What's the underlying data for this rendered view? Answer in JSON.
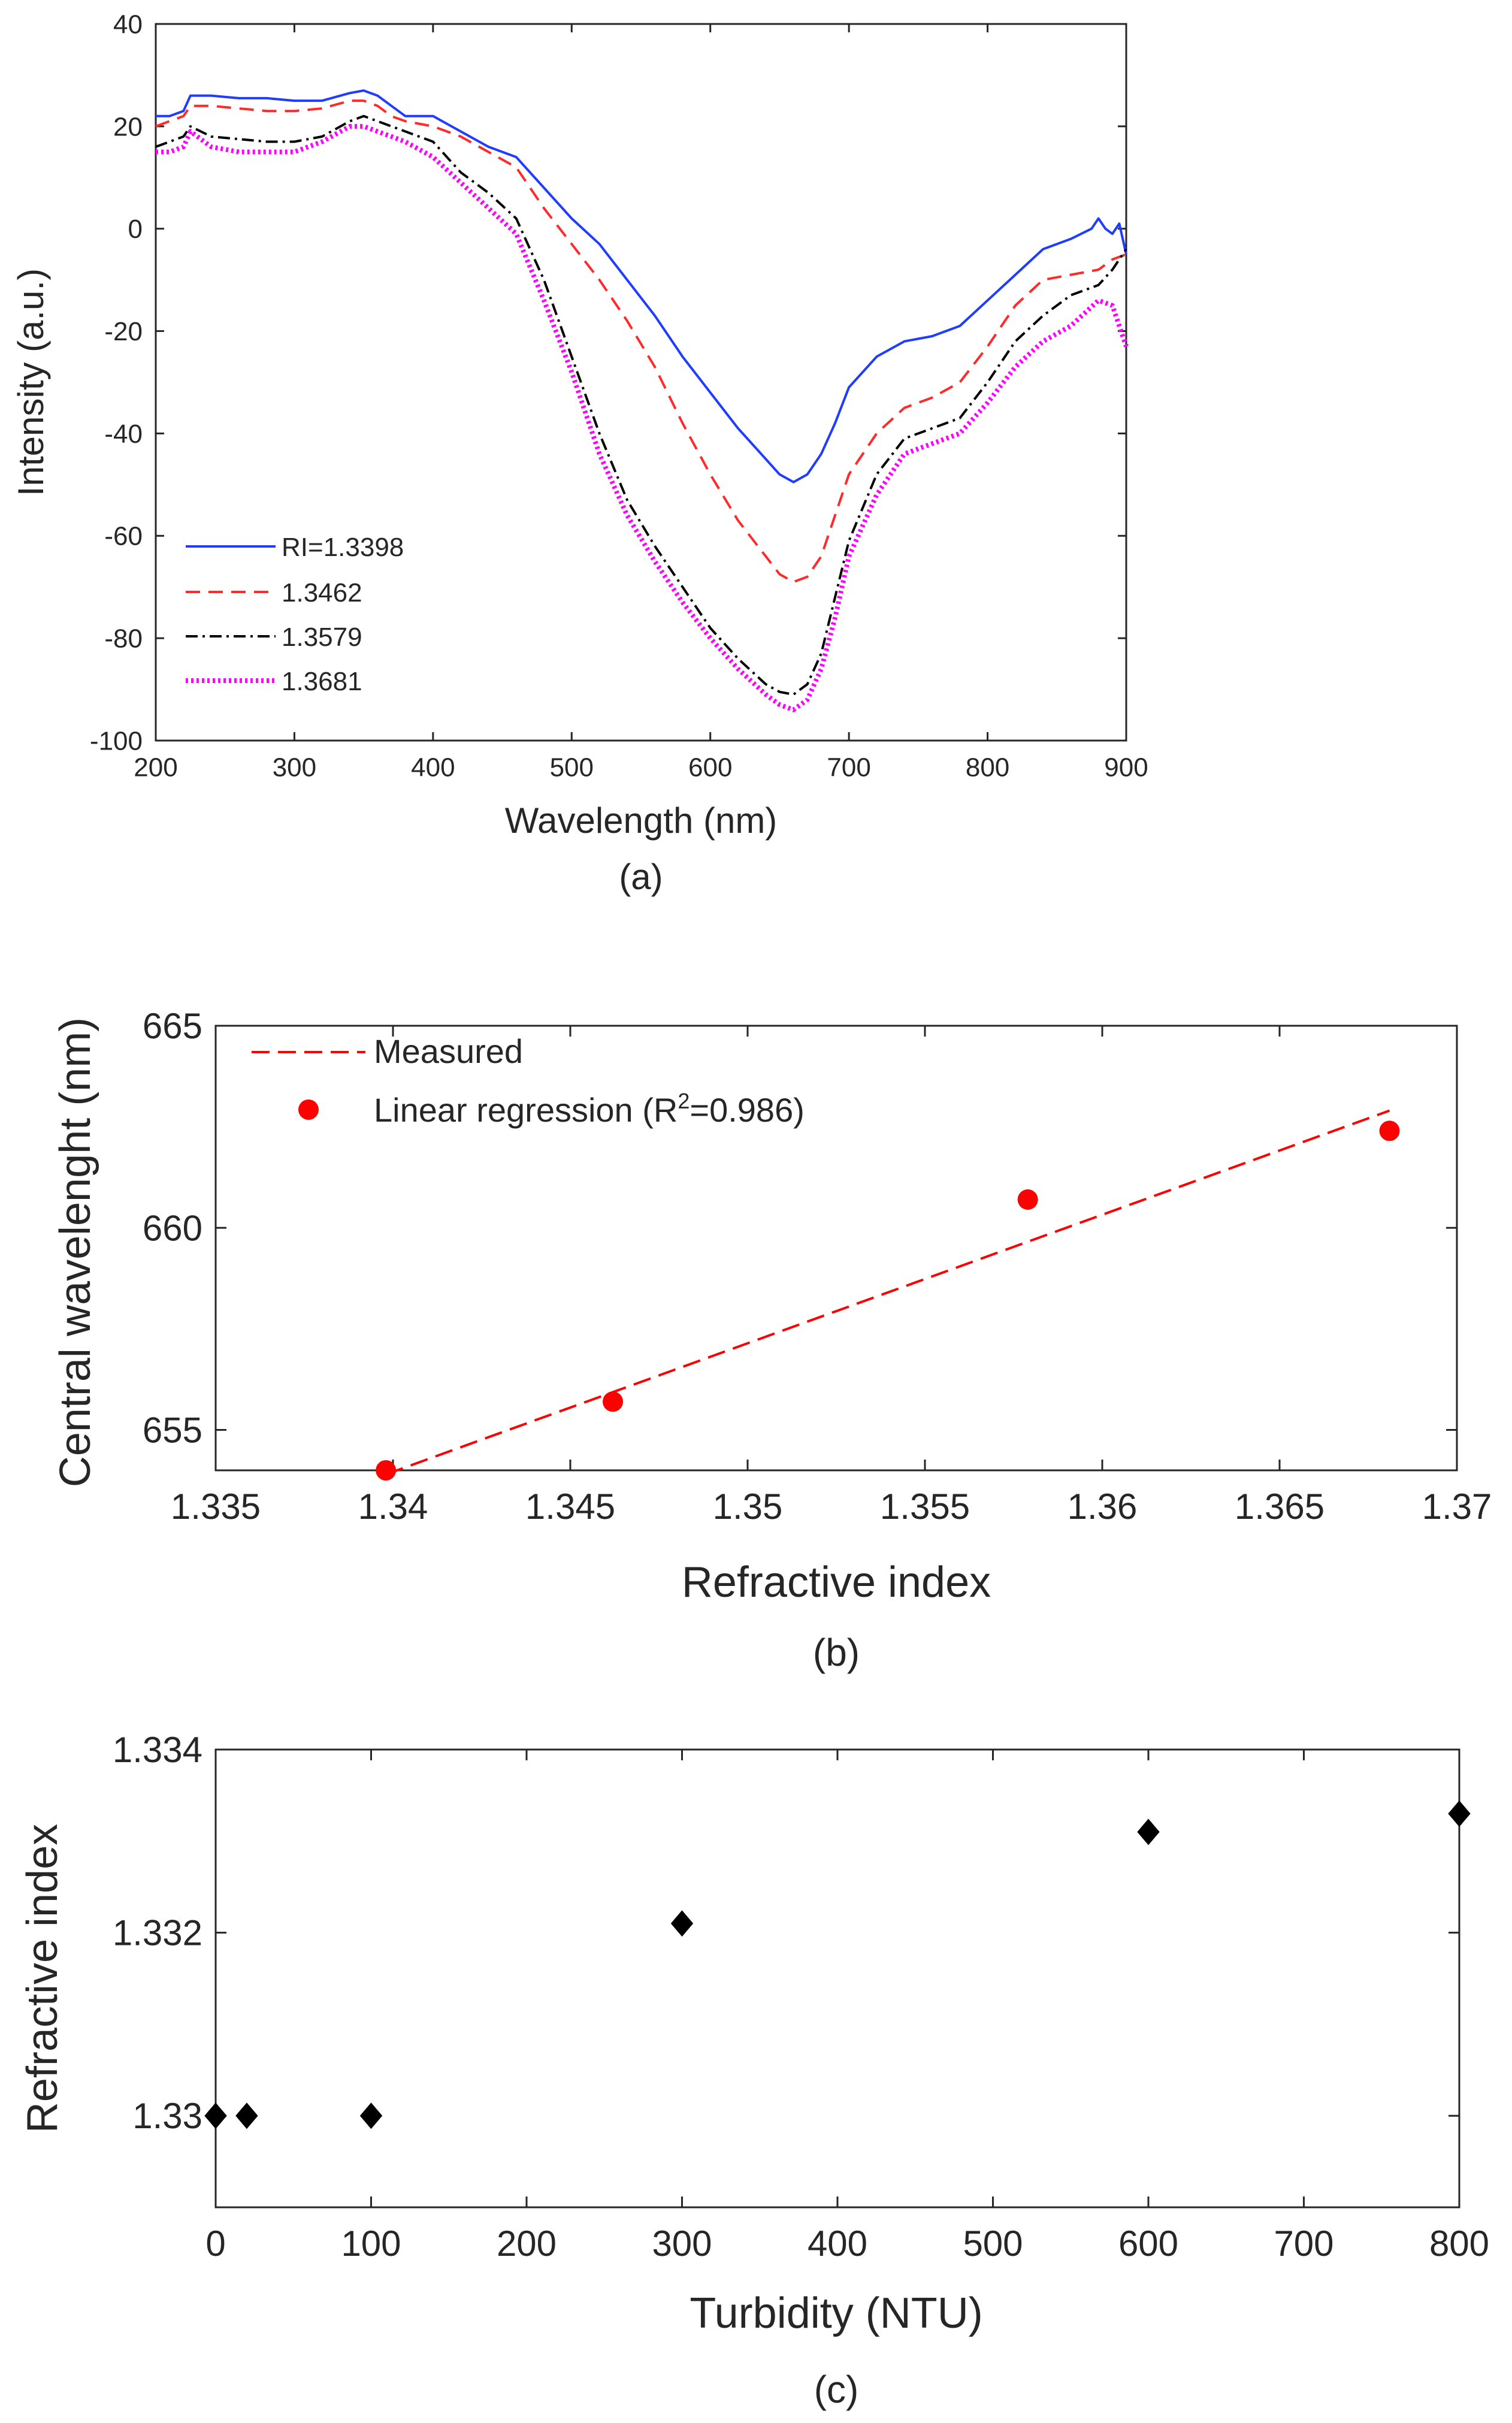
{
  "colors": {
    "blue": "#1f3cff",
    "red": "#ff2a2a",
    "black": "#000000",
    "magenta": "#ff00ff",
    "axis": "#262626"
  },
  "chart_data": [
    {
      "id": "a",
      "type": "line",
      "caption": "(a)",
      "xlabel": "Wavelength (nm)",
      "ylabel": "Intensity (a.u.)",
      "xlim": [
        200,
        900
      ],
      "ylim": [
        -100,
        40
      ],
      "xticks": [
        200,
        300,
        400,
        500,
        600,
        700,
        800,
        900
      ],
      "yticks": [
        -100,
        -80,
        -60,
        -40,
        -20,
        0,
        20,
        40
      ],
      "legend_position": "bottom-left",
      "series": [
        {
          "name": "RI=1.3398",
          "style": "solid",
          "color": "#1f3cff",
          "x": [
            200,
            210,
            220,
            225,
            240,
            260,
            280,
            300,
            320,
            340,
            350,
            360,
            370,
            380,
            400,
            420,
            440,
            460,
            480,
            500,
            520,
            540,
            560,
            580,
            600,
            620,
            640,
            650,
            660,
            670,
            680,
            690,
            700,
            720,
            740,
            760,
            780,
            800,
            820,
            840,
            860,
            875,
            880,
            885,
            890,
            895,
            900
          ],
          "y": [
            22,
            22,
            23,
            26,
            26,
            25.5,
            25.5,
            25,
            25,
            26.5,
            27,
            26,
            24,
            22,
            22,
            19,
            16,
            14,
            8,
            2,
            -3,
            -10,
            -17,
            -25,
            -32,
            -39,
            -45,
            -48,
            -49.5,
            -48,
            -44,
            -38,
            -31,
            -25,
            -22,
            -21,
            -19,
            -14,
            -9,
            -4,
            -2,
            0,
            2,
            0,
            -1,
            1,
            -5
          ]
        },
        {
          "name": "1.3462",
          "style": "dashed",
          "color": "#ff2a2a",
          "x": [
            200,
            210,
            220,
            225,
            240,
            260,
            280,
            300,
            320,
            340,
            350,
            360,
            370,
            380,
            400,
            420,
            440,
            460,
            480,
            500,
            520,
            540,
            560,
            580,
            600,
            620,
            640,
            650,
            660,
            670,
            680,
            690,
            700,
            720,
            740,
            760,
            780,
            800,
            820,
            840,
            860,
            880,
            890,
            900
          ],
          "y": [
            20,
            21,
            22,
            24,
            24,
            23.5,
            23,
            23,
            23.5,
            25,
            25,
            24,
            22,
            21,
            20,
            18,
            15,
            12,
            4,
            -3,
            -10,
            -18,
            -27,
            -38,
            -48,
            -57,
            -64,
            -67.5,
            -69,
            -68,
            -64,
            -56,
            -48,
            -40,
            -35,
            -33,
            -30,
            -23,
            -15,
            -10,
            -9,
            -8,
            -6,
            -5
          ]
        },
        {
          "name": "1.3579",
          "style": "dashdot",
          "color": "#000000",
          "x": [
            200,
            210,
            220,
            225,
            240,
            260,
            280,
            300,
            320,
            340,
            350,
            360,
            370,
            380,
            400,
            420,
            440,
            460,
            480,
            500,
            520,
            540,
            560,
            580,
            600,
            620,
            640,
            650,
            660,
            670,
            680,
            690,
            700,
            720,
            740,
            760,
            780,
            800,
            820,
            840,
            860,
            880,
            890,
            900
          ],
          "y": [
            16,
            17,
            18,
            20,
            18,
            17.5,
            17,
            17,
            18,
            21,
            22,
            21,
            20,
            19,
            17,
            11,
            7,
            2,
            -10,
            -25,
            -40,
            -53,
            -62,
            -70,
            -78,
            -84,
            -89,
            -90.5,
            -91,
            -89,
            -83,
            -72,
            -61,
            -48,
            -41,
            -39,
            -37,
            -30,
            -22,
            -17,
            -13,
            -11,
            -8,
            -4
          ]
        },
        {
          "name": "1.3681",
          "style": "dotted",
          "color": "#ff00ff",
          "x": [
            200,
            210,
            220,
            225,
            240,
            260,
            280,
            300,
            320,
            340,
            350,
            360,
            370,
            380,
            400,
            420,
            440,
            460,
            480,
            500,
            520,
            540,
            560,
            580,
            600,
            620,
            640,
            650,
            660,
            670,
            680,
            690,
            700,
            720,
            740,
            760,
            780,
            800,
            820,
            840,
            860,
            880,
            890,
            900
          ],
          "y": [
            15,
            15,
            16,
            19,
            16,
            15,
            15,
            15,
            17,
            20,
            20,
            19,
            18,
            17,
            14,
            9,
            4,
            -1,
            -14,
            -28,
            -44,
            -56,
            -65,
            -73,
            -80,
            -86,
            -91,
            -93,
            -94,
            -92,
            -86,
            -76,
            -64,
            -52,
            -44,
            -42,
            -40,
            -34,
            -27,
            -22,
            -19,
            -14,
            -15,
            -23
          ]
        }
      ]
    },
    {
      "id": "b",
      "type": "scatter",
      "caption": "(b)",
      "xlabel": "Refractive index",
      "ylabel": "Central wavelenght (nm)",
      "xlim": [
        1.335,
        1.37
      ],
      "ylim": [
        654,
        665
      ],
      "xticks": [
        1.335,
        1.34,
        1.345,
        1.35,
        1.355,
        1.36,
        1.365,
        1.37
      ],
      "xtick_labels": [
        "1.335",
        "1.34",
        "1.345",
        "1.35",
        "1.355",
        "1.36",
        "1.365",
        "1.37"
      ],
      "yticks": [
        655,
        660,
        665
      ],
      "legend_position": "top-left",
      "legend": [
        {
          "label": "Measured",
          "marker": "dashed-line"
        },
        {
          "label_prefix": "Linear regression (R",
          "label_sup": "2",
          "label_suffix": "=0.986)",
          "marker": "red-dot"
        }
      ],
      "points": {
        "x": [
          1.3398,
          1.3462,
          1.3579,
          1.3681
        ],
        "y": [
          654,
          655.7,
          660.7,
          662.4
        ],
        "color": "#ff0000"
      },
      "fit_line": {
        "x": [
          1.3398,
          1.3681
        ],
        "y": [
          653.9,
          662.9
        ],
        "color": "#ff0000",
        "style": "dashed"
      }
    },
    {
      "id": "c",
      "type": "scatter",
      "caption": "(c)",
      "xlabel": "Turbidity (NTU)",
      "ylabel": "Refractive index",
      "xlim": [
        0,
        800
      ],
      "ylim": [
        1.329,
        1.334
      ],
      "xticks": [
        0,
        100,
        200,
        300,
        400,
        500,
        600,
        700,
        800
      ],
      "yticks": [
        1.33,
        1.332,
        1.334
      ],
      "ytick_labels": [
        "1.33",
        "1.332",
        "1.334"
      ],
      "points": {
        "x": [
          0,
          20,
          100,
          300,
          600,
          800
        ],
        "y": [
          1.33,
          1.33,
          1.33,
          1.3321,
          1.3331,
          1.3333
        ],
        "marker": "diamond",
        "color": "#000000"
      }
    }
  ]
}
